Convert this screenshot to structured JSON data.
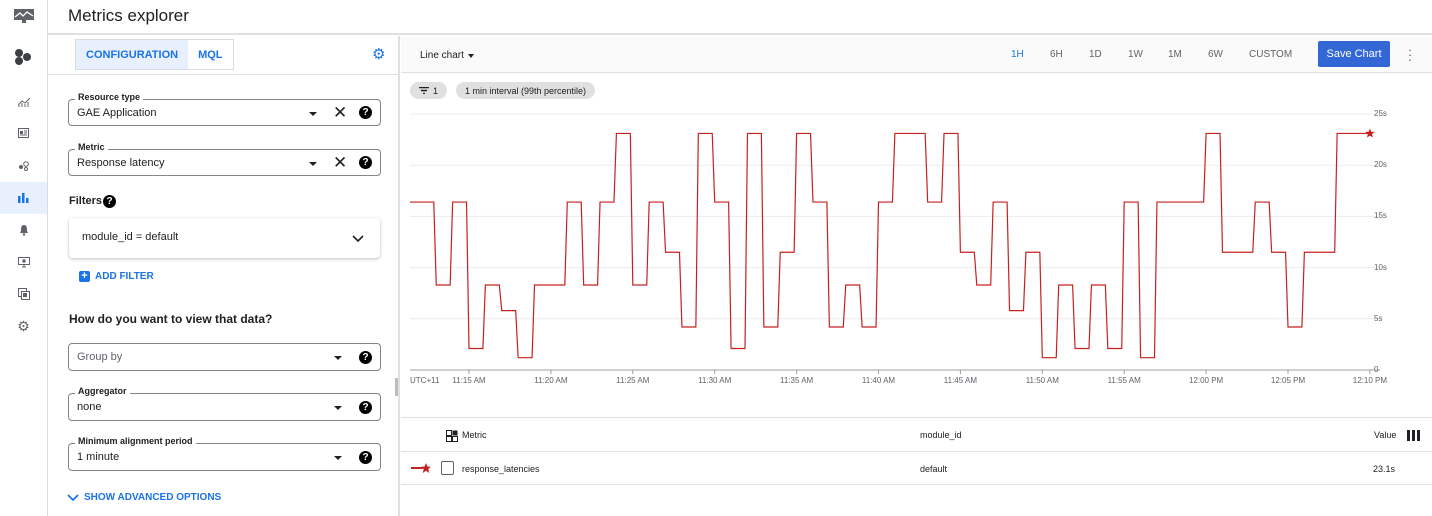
{
  "header": {
    "title": "Metrics explorer"
  },
  "rail": {
    "items": [
      "monitoring-logo-icon",
      "overview-icon",
      "dashboards-icon",
      "services-icon",
      "metrics-explorer-icon",
      "alerting-icon",
      "uptime-checks-icon",
      "groups-icon",
      "settings-icon"
    ],
    "active": "metrics-explorer-icon"
  },
  "config": {
    "tabs": [
      {
        "label": "CONFIGURATION",
        "selected": true
      },
      {
        "label": "MQL",
        "selected": false
      }
    ],
    "resource_type": {
      "label": "Resource type",
      "value": "GAE Application"
    },
    "metric": {
      "label": "Metric",
      "value": "Response latency"
    },
    "filters_label": "Filters",
    "filter_value": "module_id = default",
    "add_filter": "ADD FILTER",
    "view_heading": "How do you want to view that data?",
    "group_by": {
      "placeholder": "Group by"
    },
    "aggregator": {
      "label": "Aggregator",
      "value": "none"
    },
    "alignment": {
      "label": "Minimum alignment period",
      "value": "1 minute"
    },
    "advanced": "SHOW ADVANCED OPTIONS"
  },
  "toolbar": {
    "chart_type": "Line chart",
    "ranges": [
      "1H",
      "6H",
      "1D",
      "1W",
      "1M",
      "6W",
      "CUSTOM"
    ],
    "active_range": "1H",
    "save": "Save Chart",
    "accent": "#1a73e8"
  },
  "chips": {
    "filter_count": "1",
    "interval": "1 min interval (99th percentile)"
  },
  "chart_data": {
    "type": "line",
    "line_color": "#c5221f",
    "timezone_label": "UTC+11",
    "x_ticks": [
      "11:15 AM",
      "11:20 AM",
      "11:25 AM",
      "11:30 AM",
      "11:35 AM",
      "11:40 AM",
      "11:45 AM",
      "11:50 AM",
      "11:55 AM",
      "12:00 PM",
      "12:05 PM",
      "12:10 PM"
    ],
    "y_ticks": [
      "0",
      "5s",
      "10s",
      "15s",
      "20s",
      "25s"
    ],
    "ylim": [
      0,
      25
    ],
    "grid": true,
    "series": [
      {
        "name": "response_latencies",
        "unit": "s",
        "points": [
          [
            "11:11",
            16.4
          ],
          [
            "11:12",
            16.4
          ],
          [
            "11:13",
            8.3
          ],
          [
            "11:14",
            16.4
          ],
          [
            "11:15",
            2.1
          ],
          [
            "11:16",
            8.3
          ],
          [
            "11:17",
            5.8
          ],
          [
            "11:18",
            1.2
          ],
          [
            "11:19",
            8.3
          ],
          [
            "11:20",
            8.3
          ],
          [
            "11:21",
            16.4
          ],
          [
            "11:22",
            8.3
          ],
          [
            "11:23",
            16.4
          ],
          [
            "11:24",
            23.1
          ],
          [
            "11:25",
            8.3
          ],
          [
            "11:26",
            16.4
          ],
          [
            "11:27",
            11.5
          ],
          [
            "11:28",
            4.2
          ],
          [
            "11:29",
            23.1
          ],
          [
            "11:30",
            16.4
          ],
          [
            "11:31",
            2.1
          ],
          [
            "11:32",
            23.1
          ],
          [
            "11:33",
            4.2
          ],
          [
            "11:34",
            11.5
          ],
          [
            "11:35",
            23.1
          ],
          [
            "11:36",
            16.4
          ],
          [
            "11:37",
            4.2
          ],
          [
            "11:38",
            8.3
          ],
          [
            "11:39",
            4.2
          ],
          [
            "11:40",
            16.4
          ],
          [
            "11:41",
            23.1
          ],
          [
            "11:42",
            23.1
          ],
          [
            "11:43",
            16.4
          ],
          [
            "11:44",
            23.1
          ],
          [
            "11:45",
            11.5
          ],
          [
            "11:46",
            8.3
          ],
          [
            "11:47",
            16.4
          ],
          [
            "11:48",
            5.8
          ],
          [
            "11:49",
            11.5
          ],
          [
            "11:50",
            1.2
          ],
          [
            "11:51",
            8.3
          ],
          [
            "11:52",
            2.1
          ],
          [
            "11:53",
            8.3
          ],
          [
            "11:54",
            2.1
          ],
          [
            "11:55",
            16.4
          ],
          [
            "11:56",
            1.2
          ],
          [
            "11:57",
            16.4
          ],
          [
            "11:58",
            16.4
          ],
          [
            "11:59",
            16.4
          ],
          [
            "12:00",
            23.1
          ],
          [
            "12:01",
            11.5
          ],
          [
            "12:02",
            11.5
          ],
          [
            "12:03",
            16.4
          ],
          [
            "12:04",
            11.5
          ],
          [
            "12:05",
            4.2
          ],
          [
            "12:06",
            11.5
          ],
          [
            "12:07",
            11.5
          ],
          [
            "12:08",
            23.1
          ],
          [
            "12:09",
            23.1
          ],
          [
            "12:10",
            23.1
          ]
        ]
      }
    ]
  },
  "table": {
    "columns": [
      "Metric",
      "module_id",
      "Value"
    ],
    "rows": [
      {
        "metric": "response_latencies",
        "module_id": "default",
        "value": "23.1s"
      }
    ]
  }
}
